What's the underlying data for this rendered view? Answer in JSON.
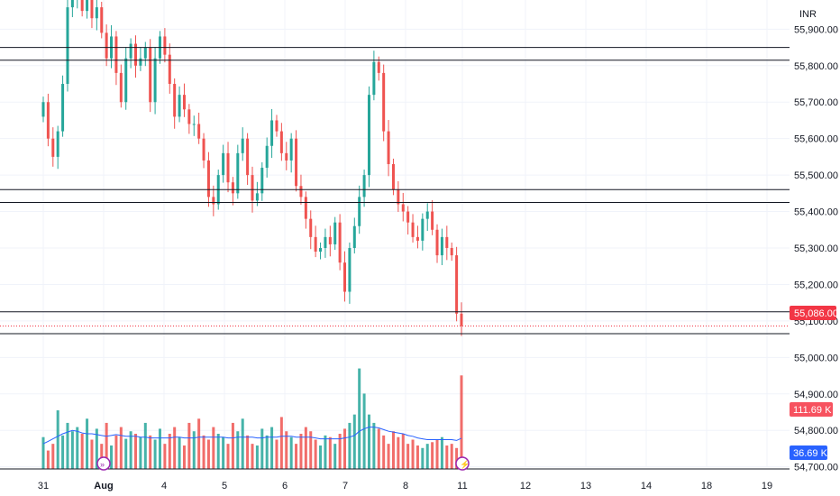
{
  "currency_label": "INR",
  "colors": {
    "up": "#26a69a",
    "down": "#ef5350",
    "volume_ma": "#2962ff",
    "level_line": "#131722",
    "grid": "#f0f3fa",
    "last_price_tag": "#f23645",
    "ma_tag": "#2962ff",
    "volume_tag": "#f7525f",
    "marker": "#9c27b0"
  },
  "price_axis_labels": [
    "55,900.00",
    "55,800.00",
    "55,700.00",
    "55,600.00",
    "55,500.00",
    "55,400.00",
    "55,300.00",
    "55,200.00",
    "55,100.00",
    "55,000.00",
    "54,900.00",
    "54,800.00",
    "54,700.00"
  ],
  "date_axis_labels": [
    "31",
    "Aug",
    "4",
    "5",
    "6",
    "7",
    "8",
    "11",
    "12",
    "13",
    "14",
    "18",
    "19"
  ],
  "last_price_tag": "55,086.00",
  "volume_tag": "111.69 K",
  "volume_ma_tag": "36.69 K",
  "chart_data": {
    "type": "candlestick",
    "y_unit": "INR",
    "ylim": [
      54620,
      55980
    ],
    "grid": true,
    "horizontal_levels": [
      55850,
      55815,
      55460,
      55425,
      55125,
      55065
    ],
    "last_price": 55086,
    "closes": [
      55700,
      55600,
      55550,
      55620,
      55750,
      55960,
      55990,
      55990,
      55950,
      55980,
      55930,
      55960,
      55890,
      55820,
      55880,
      55780,
      55700,
      55820,
      55860,
      55800,
      55820,
      55850,
      55700,
      55820,
      55880,
      55830,
      55750,
      55660,
      55720,
      55680,
      55640,
      55640,
      55600,
      55540,
      55440,
      55420,
      55500,
      55560,
      55480,
      55450,
      55560,
      55600,
      55500,
      55430,
      55450,
      55520,
      55580,
      55650,
      55620,
      55560,
      55540,
      55600,
      55470,
      55440,
      55380,
      55330,
      55290,
      55300,
      55330,
      55310,
      55370,
      55260,
      55180,
      55300,
      55360,
      55440,
      55500,
      55720,
      55810,
      55780,
      55620,
      55530,
      55460,
      55420,
      55400,
      55370,
      55330,
      55320,
      55380,
      55400,
      55350,
      55280,
      55330,
      55300,
      55280,
      55120,
      55086
    ],
    "volume": {
      "values_k": [
        38,
        22,
        30,
        70,
        40,
        55,
        45,
        50,
        42,
        60,
        35,
        48,
        30,
        55,
        28,
        40,
        50,
        36,
        45,
        42,
        38,
        55,
        40,
        35,
        48,
        30,
        42,
        50,
        38,
        28,
        55,
        45,
        60,
        40,
        35,
        50,
        42,
        38,
        30,
        55,
        45,
        60,
        40,
        30,
        28,
        48,
        40,
        50,
        35,
        62,
        45,
        38,
        30,
        42,
        50,
        45,
        35,
        28,
        40,
        38,
        30,
        42,
        48,
        55,
        65,
        120,
        90,
        65,
        55,
        48,
        40,
        30,
        45,
        38,
        42,
        30,
        35,
        28,
        25,
        30,
        32,
        35,
        38,
        28,
        30,
        25,
        111.69
      ],
      "ma_k": [
        30,
        33,
        36,
        39,
        42,
        44,
        46,
        45,
        43,
        42,
        42,
        41,
        40,
        39,
        40,
        41,
        40,
        39,
        39,
        39,
        38,
        38,
        37,
        37,
        37,
        37,
        37,
        38,
        38,
        37,
        37,
        37,
        38,
        38,
        38,
        38,
        38,
        38,
        37,
        37,
        38,
        38,
        38,
        38,
        37,
        37,
        38,
        38,
        38,
        39,
        39,
        39,
        38,
        38,
        38,
        38,
        37,
        36,
        36,
        36,
        36,
        36,
        37,
        38,
        40,
        45,
        48,
        50,
        50,
        49,
        47,
        45,
        44,
        43,
        42,
        40,
        39,
        37,
        36,
        35,
        35,
        35,
        35,
        35,
        35,
        34,
        36.69
      ],
      "last_value_k": 111.69,
      "ma_last_value_k": 36.69
    }
  }
}
